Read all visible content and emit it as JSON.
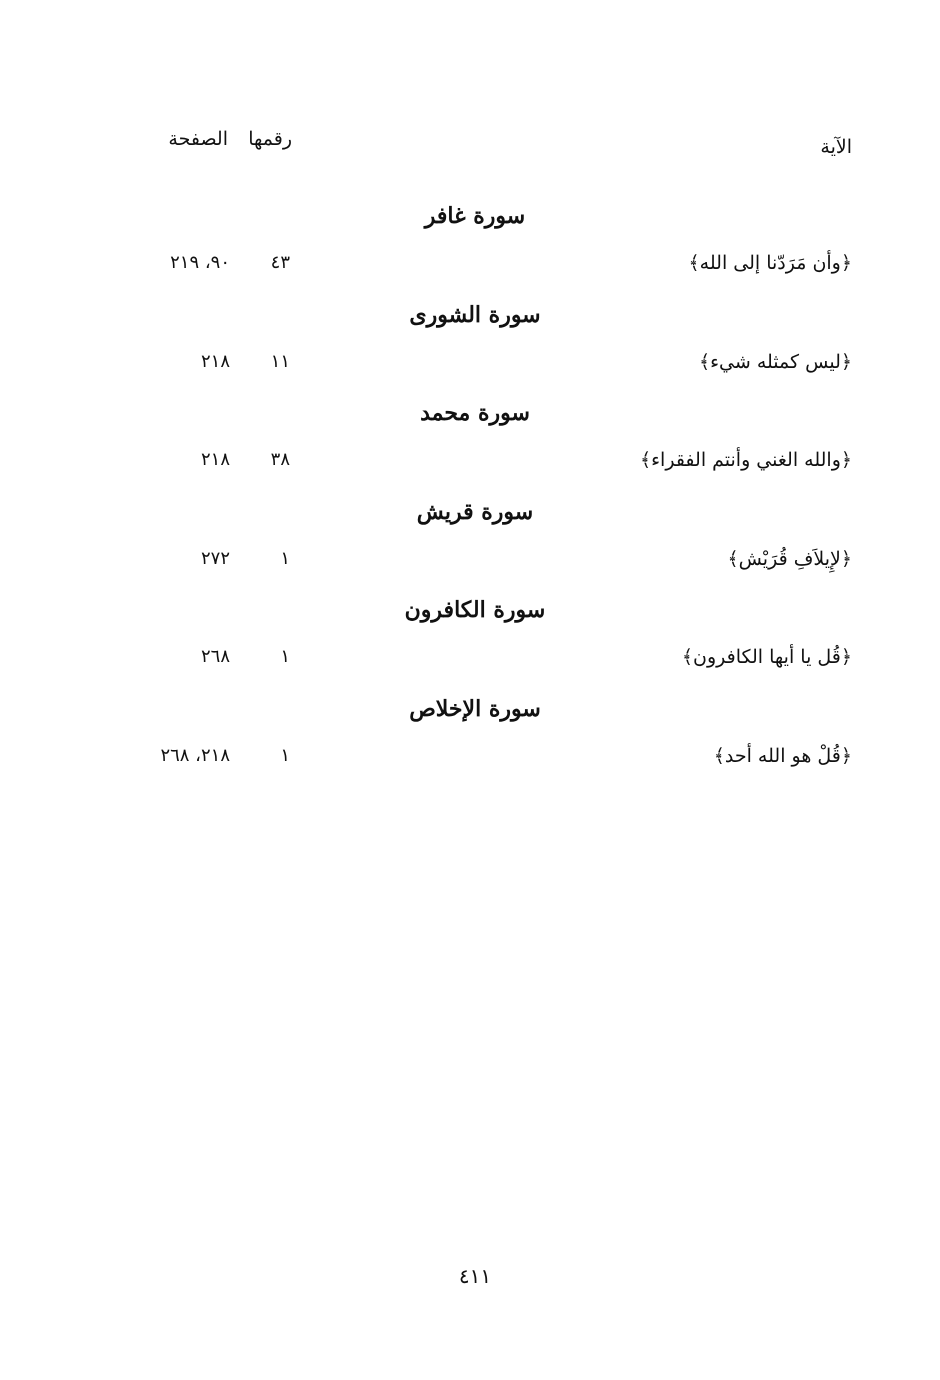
{
  "header": {
    "verse": "الآية",
    "number": "رقمها",
    "page": "الصفحة"
  },
  "sections": [
    {
      "surah": "سورة غافر",
      "verse": "﴿وأن مَرَدّنا إلى الله﴾",
      "number": "٤٣",
      "pages": "٩٠، ٢١٩"
    },
    {
      "surah": "سورة الشورى",
      "verse": "﴿ليس كمثله شيء﴾",
      "number": "١١",
      "pages": "٢١٨"
    },
    {
      "surah": "سورة محمد",
      "verse": "﴿والله الغني وأنتم الفقراء﴾",
      "number": "٣٨",
      "pages": "٢١٨"
    },
    {
      "surah": "سورة قريش",
      "verse": "﴿لإِيلاَفِ قُرَيْش﴾",
      "number": "١",
      "pages": "٢٧٢"
    },
    {
      "surah": "سورة الكافرون",
      "verse": "﴿قُل يا أيها الكافرون﴾",
      "number": "١",
      "pages": "٢٦٨"
    },
    {
      "surah": "سورة الإخلاص",
      "verse": "﴿قُلْ هو الله أحد﴾",
      "number": "١",
      "pages": "٢١٨، ٢٦٨"
    }
  ],
  "page_number": "٤١١"
}
